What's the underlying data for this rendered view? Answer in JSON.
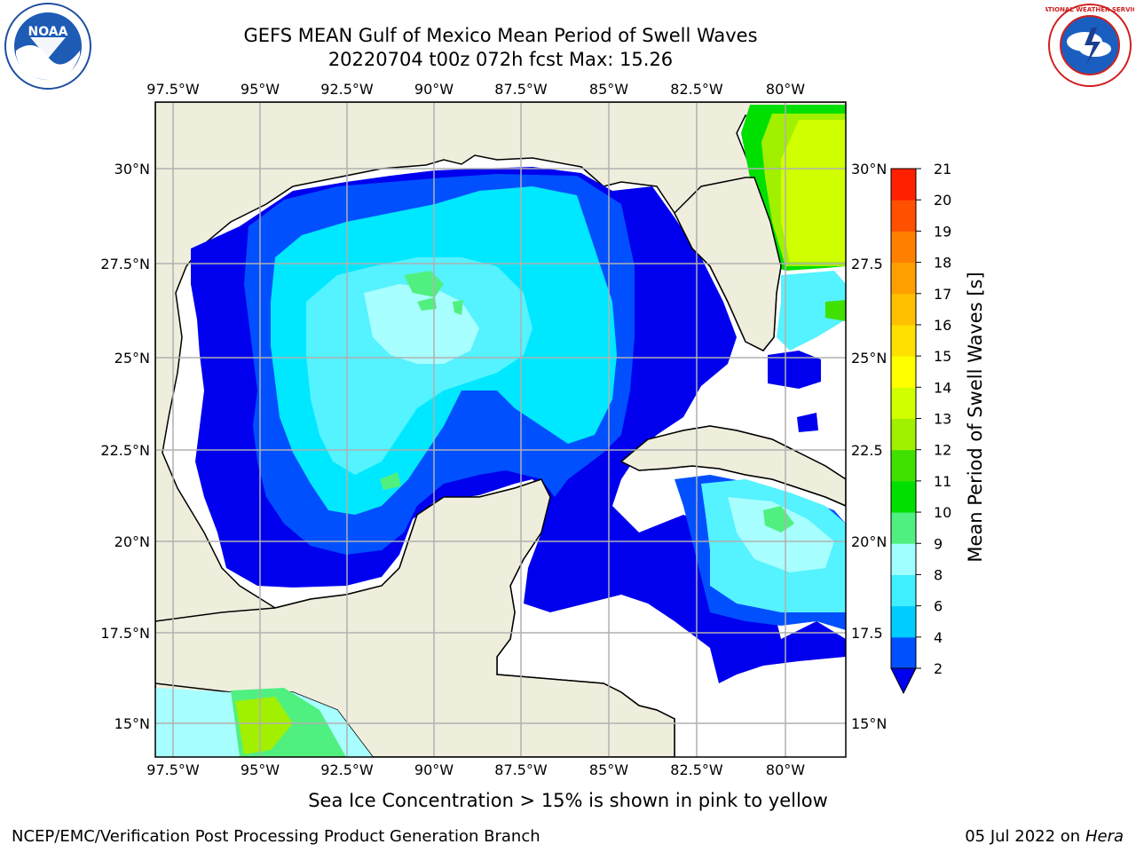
{
  "header": {
    "title": "GEFS MEAN Gulf of Mexico Mean Period of Swell Waves",
    "subtitle": "20220704 t00z 072h fcst   Max: 15.26"
  },
  "map": {
    "lon_labels": [
      "97.5°W",
      "95°W",
      "92.5°W",
      "90°W",
      "87.5°W",
      "85°W",
      "82.5°W",
      "80°W"
    ],
    "lat_labels_left": [
      "30°N",
      "27.5°N",
      "25°N",
      "22.5°N",
      "20°N",
      "17.5°N",
      "15°N"
    ],
    "lat_labels_right": [
      "30°N",
      "27.5",
      "25°N",
      "22.5",
      "20°N",
      "17.5",
      "15°N"
    ],
    "colors": {
      "land": "#efeedd",
      "grid": "#b0b0b0"
    }
  },
  "colorbar": {
    "label": "Mean Period of Swell Waves [s]",
    "ticks": [
      "2",
      "4",
      "6",
      "8",
      "9",
      "10",
      "11",
      "12",
      "13",
      "14",
      "15",
      "16",
      "17",
      "18",
      "19",
      "20",
      "21"
    ],
    "colors": [
      "#0050ff",
      "#00ccff",
      "#40f0ff",
      "#a0ffff",
      "#50f080",
      "#00e000",
      "#40e000",
      "#a0f000",
      "#d0ff00",
      "#ffff00",
      "#ffe000",
      "#ffc000",
      "#ffa000",
      "#ff8000",
      "#ff5000",
      "#ff2000",
      "#ff0000"
    ],
    "under_color": "#0000ee"
  },
  "footer": {
    "note": "Sea Ice Concentration > 15% is shown in pink to yellow",
    "credit": "NCEP/EMC/Verification Post Processing Product Generation Branch",
    "date": "05 Jul 2022 on",
    "host": "Hera"
  },
  "logos": {
    "noaa": "NOAA",
    "nws": "NATIONAL WEATHER SERVICE"
  }
}
